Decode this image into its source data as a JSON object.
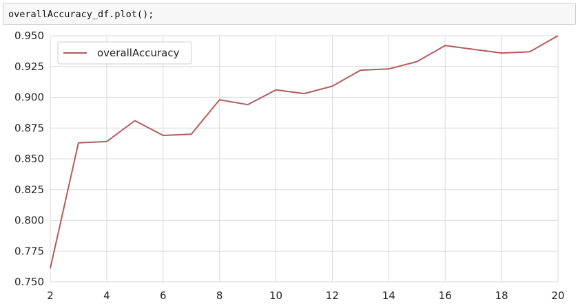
{
  "code_cell": {
    "source": "overallAccuracy_df.plot();"
  },
  "colors": {
    "line": "#b35a5c",
    "grid": "#d9d9d9",
    "plot_background": "#ffffff",
    "legend_border": "#cccccc"
  },
  "chart_data": {
    "type": "line",
    "title": "",
    "xlabel": "",
    "ylabel": "",
    "xlim": [
      2,
      20
    ],
    "ylim": [
      0.75,
      0.95
    ],
    "grid": true,
    "legend_position": "top-left",
    "x_ticks": [
      "2",
      "4",
      "6",
      "8",
      "10",
      "12",
      "14",
      "16",
      "18",
      "20"
    ],
    "y_ticks": [
      "0.750",
      "0.775",
      "0.800",
      "0.825",
      "0.850",
      "0.875",
      "0.900",
      "0.925",
      "0.950"
    ],
    "x": [
      2,
      3,
      4,
      5,
      6,
      7,
      8,
      9,
      10,
      11,
      12,
      13,
      14,
      15,
      16,
      17,
      18,
      19,
      20
    ],
    "series": [
      {
        "name": "overallAccuracy",
        "values": [
          0.761,
          0.863,
          0.864,
          0.881,
          0.869,
          0.87,
          0.898,
          0.894,
          0.906,
          0.903,
          0.909,
          0.922,
          0.923,
          0.929,
          0.942,
          0.939,
          0.936,
          0.937,
          0.95
        ]
      }
    ]
  }
}
